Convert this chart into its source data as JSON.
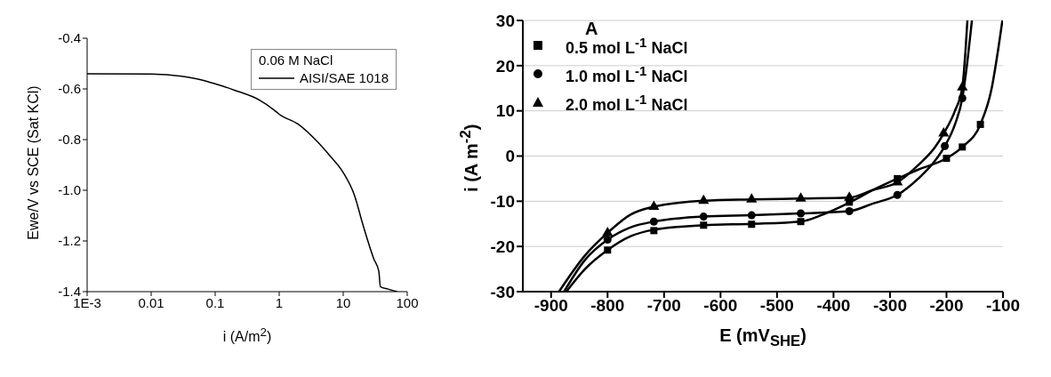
{
  "chart_data": [
    {
      "type": "line",
      "xlabel": "i (A/m$^{2}$)",
      "ylabel": "Ewe/V vs SCE (Sat KCl)",
      "legend_title": "0.06 M NaCl",
      "legend": "top right",
      "log": "x",
      "marker": "none",
      "line_style": "solid",
      "xlim": [
        0.001,
        100
      ],
      "xticks": [
        {
          "value": 0.001,
          "label": "1E-3"
        },
        0.01,
        0.1,
        1,
        10,
        100
      ],
      "ylim": [
        -1.4,
        -0.4
      ],
      "yticks": [
        -1.4,
        -1.2,
        {
          "value": -1,
          "label": "-1.0"
        },
        -0.8,
        -0.6,
        -0.4
      ],
      "series": [
        {
          "name": "AISI/SAE 1018",
          "color": "#000000",
          "x": [
            0.001,
            0.01,
            0.03,
            0.05,
            0.1,
            0.2,
            0.5,
            0.8,
            1,
            2,
            4,
            6,
            10,
            15,
            20,
            30,
            36,
            38,
            50,
            70
          ],
          "values": [
            -0.54,
            -0.541,
            -0.55,
            -0.56,
            -0.58,
            -0.605,
            -0.645,
            -0.68,
            -0.7,
            -0.74,
            -0.81,
            -0.86,
            -0.93,
            -1.02,
            -1.13,
            -1.27,
            -1.32,
            -1.38,
            -1.39,
            -1.4
          ]
        }
      ]
    },
    {
      "type": "scatter",
      "title": "A",
      "xlabel": "E  (mV$_{SHE}$)",
      "ylabel": "i  (A m$^{-2}$)",
      "legend": "top left",
      "grid": "y",
      "xlim": [
        -950,
        -100
      ],
      "xticks": [
        -900,
        -800,
        -700,
        -600,
        -500,
        -400,
        -300,
        -200,
        -100
      ],
      "ylim": [
        -30,
        30
      ],
      "yticks": [
        -30,
        -20,
        -10,
        0,
        10,
        20,
        30
      ],
      "series": [
        {
          "name": "0.5 mol L$^{-1}$ NaCl",
          "color": "#000000",
          "marker": "square",
          "x": [
            -800,
            -718,
            -630,
            -545,
            -458,
            -372,
            -287,
            -200,
            -172,
            -140
          ],
          "values": [
            -20.8,
            -16.5,
            -15.3,
            -15.1,
            -14.5,
            -10.2,
            -5,
            -0.5,
            2,
            7
          ]
        },
        {
          "name": "1.0 mol L$^{-1}$ NaCl",
          "color": "#000000",
          "marker": "circle",
          "x": [
            -800,
            -718,
            -630,
            -545,
            -458,
            -372,
            -287,
            -203,
            -172
          ],
          "values": [
            -18.5,
            -14.5,
            -13.4,
            -13.1,
            -12.7,
            -12.2,
            -8.6,
            2.2,
            12.8
          ]
        },
        {
          "name": "2.0 mol L$^{-1}$ NaCl",
          "color": "#000000",
          "marker": "triangle",
          "x": [
            -800,
            -718,
            -630,
            -545,
            -458,
            -372,
            -287,
            -205,
            -172
          ],
          "values": [
            -17,
            -11.2,
            -9.9,
            -9.6,
            -9.4,
            -9.2,
            -5.8,
            5,
            15.2
          ]
        },
        {
          "type": "line",
          "color": "#000000",
          "marker": "none",
          "x": [
            -873,
            -840,
            -800,
            -760,
            -718,
            -630,
            -545,
            -458,
            -420,
            -372,
            -330,
            -287,
            -250,
            -200,
            -172,
            -140,
            -120,
            -108,
            -101
          ],
          "values": [
            -30,
            -25,
            -20.8,
            -17.8,
            -16.3,
            -15.3,
            -15,
            -14.5,
            -13,
            -10.3,
            -7.5,
            -5,
            -3,
            -0.5,
            2,
            7,
            15,
            24,
            30
          ]
        },
        {
          "type": "line",
          "color": "#000000",
          "marker": "none",
          "x": [
            -877,
            -840,
            -800,
            -760,
            -718,
            -630,
            -545,
            -458,
            -372,
            -330,
            -287,
            -250,
            -220,
            -203,
            -185,
            -172,
            -162,
            -155
          ],
          "values": [
            -30,
            -23,
            -18.5,
            -15.8,
            -14.5,
            -13.4,
            -13.1,
            -12.7,
            -12.2,
            -10.5,
            -8.6,
            -5,
            -1,
            2.2,
            7,
            12.8,
            22,
            30
          ]
        },
        {
          "type": "line",
          "color": "#000000",
          "marker": "none",
          "x": [
            -886,
            -840,
            -800,
            -760,
            -718,
            -630,
            -545,
            -458,
            -372,
            -330,
            -287,
            -250,
            -220,
            -205,
            -185,
            -172,
            -166,
            -163
          ],
          "values": [
            -30,
            -22,
            -17,
            -13,
            -11.2,
            -9.9,
            -9.6,
            -9.4,
            -9.2,
            -7.5,
            -5.8,
            -2,
            2,
            5,
            10,
            15.2,
            24,
            30
          ]
        }
      ]
    }
  ]
}
